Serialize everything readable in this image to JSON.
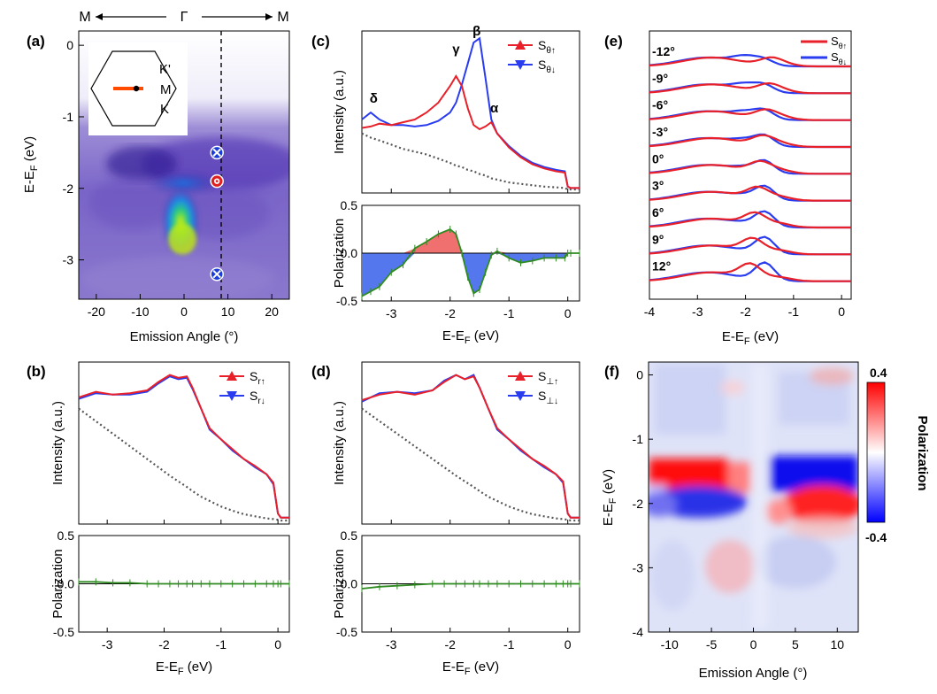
{
  "figure": {
    "top_labels": {
      "left": "M",
      "center": "Γ",
      "right": "M"
    },
    "panel_labels": {
      "a": "(a)",
      "b": "(b)",
      "c": "(c)",
      "d": "(d)",
      "e": "(e)",
      "f": "(f)"
    },
    "bz_labels": {
      "k_prime": "K'",
      "m": "M",
      "k": "K"
    }
  },
  "colors": {
    "red": "#e8202a",
    "blue": "#2a3cf0",
    "green": "#2e8b20",
    "gray": "#555555"
  },
  "chart_data": [
    {
      "id": "a",
      "type": "heatmap",
      "xlabel": "Emission Angle (°)",
      "ylabel": "E-E_F (eV)",
      "xlim": [
        -24,
        24
      ],
      "ylim": [
        -3.55,
        0.2
      ],
      "xticks": [
        -20,
        -10,
        0,
        10,
        20
      ],
      "yticks": [
        0,
        -1,
        -2,
        -3
      ],
      "cut_angle": 7.5,
      "markers": [
        {
          "angle": 7.5,
          "energy": -1.5,
          "kind": "spin-down"
        },
        {
          "angle": 7.5,
          "energy": -1.9,
          "kind": "spin-up"
        },
        {
          "angle": 7.5,
          "energy": -3.2,
          "kind": "spin-down"
        }
      ]
    },
    {
      "id": "b",
      "type": "line",
      "xlabel": "E-E_F (eV)",
      "ylabel_top": "Intensity (a.u.)",
      "ylabel_bottom": "Polarization",
      "xlim": [
        -3.5,
        0.2
      ],
      "xticks": [
        -3,
        -2,
        -1,
        0
      ],
      "pol_ylim": [
        -0.5,
        0.5
      ],
      "pol_yticks": [
        0.5,
        0.0,
        -0.5
      ],
      "legend": [
        "S_r↑",
        "S_r↓"
      ],
      "energy": [
        -3.5,
        -3.2,
        -2.9,
        -2.6,
        -2.3,
        -2.1,
        -1.9,
        -1.75,
        -1.6,
        -1.5,
        -1.35,
        -1.2,
        -1.0,
        -0.8,
        -0.6,
        -0.4,
        -0.2,
        -0.08,
        0.0,
        0.05,
        0.2
      ],
      "intensity_up": [
        0.88,
        0.92,
        0.9,
        0.91,
        0.93,
        0.99,
        1.04,
        1.02,
        1.03,
        0.95,
        0.8,
        0.66,
        0.58,
        0.51,
        0.44,
        0.39,
        0.33,
        0.27,
        0.05,
        0.02,
        0.02
      ],
      "intensity_down": [
        0.87,
        0.91,
        0.9,
        0.9,
        0.92,
        0.98,
        1.03,
        1.01,
        1.02,
        0.94,
        0.8,
        0.65,
        0.58,
        0.5,
        0.44,
        0.38,
        0.33,
        0.26,
        0.05,
        0.02,
        0.02
      ],
      "background": [
        0.8,
        0.71,
        0.62,
        0.53,
        0.44,
        0.38,
        0.32,
        0.28,
        0.24,
        0.21,
        0.17,
        0.14,
        0.1,
        0.07,
        0.045,
        0.03,
        0.015,
        0.01,
        0.005,
        0.0,
        0.0
      ],
      "polarization": [
        0.02,
        0.02,
        0.01,
        0.01,
        0.0,
        0.0,
        0.0,
        0.0,
        0.0,
        0.0,
        0.0,
        0.0,
        0.0,
        0.0,
        0.0,
        0.0,
        0.0,
        0.0,
        0.0,
        0.0,
        0.0
      ]
    },
    {
      "id": "c",
      "type": "line",
      "xlabel": "E-E_F (eV)",
      "ylabel_top": "Intensity (a.u.)",
      "ylabel_bottom": "Polarization",
      "xlim": [
        -3.5,
        0.2
      ],
      "xticks": [
        -3,
        -2,
        -1,
        0
      ],
      "pol_ylim": [
        -0.5,
        0.5
      ],
      "pol_yticks": [
        0.5,
        0.0,
        -0.5
      ],
      "legend": [
        "S_θ↑",
        "S_θ↓"
      ],
      "peak_labels": [
        {
          "text": "δ",
          "energy": -3.3,
          "intensity": 0.62
        },
        {
          "text": "γ",
          "energy": -1.9,
          "intensity": 0.97
        },
        {
          "text": "β",
          "energy": -1.55,
          "intensity": 1.1
        },
        {
          "text": "α",
          "energy": -1.25,
          "intensity": 0.55
        }
      ],
      "energy": [
        -3.5,
        -3.35,
        -3.2,
        -3.0,
        -2.8,
        -2.6,
        -2.4,
        -2.2,
        -2.0,
        -1.9,
        -1.8,
        -1.7,
        -1.6,
        -1.5,
        -1.4,
        -1.3,
        -1.2,
        -1.0,
        -0.8,
        -0.6,
        -0.4,
        -0.2,
        -0.05,
        0.0,
        0.05,
        0.2
      ],
      "intensity_up": [
        0.44,
        0.45,
        0.47,
        0.46,
        0.48,
        0.5,
        0.55,
        0.62,
        0.74,
        0.81,
        0.74,
        0.58,
        0.46,
        0.43,
        0.45,
        0.48,
        0.4,
        0.3,
        0.23,
        0.18,
        0.15,
        0.13,
        0.12,
        0.02,
        0.01,
        0.01
      ],
      "intensity_down": [
        0.5,
        0.55,
        0.5,
        0.46,
        0.46,
        0.45,
        0.46,
        0.49,
        0.55,
        0.62,
        0.75,
        0.9,
        1.05,
        1.08,
        0.8,
        0.5,
        0.4,
        0.31,
        0.24,
        0.19,
        0.16,
        0.14,
        0.13,
        0.02,
        0.01,
        0.01
      ],
      "background": [
        0.4,
        0.37,
        0.35,
        0.32,
        0.29,
        0.27,
        0.25,
        0.22,
        0.19,
        0.17,
        0.16,
        0.14,
        0.13,
        0.11,
        0.1,
        0.08,
        0.07,
        0.05,
        0.04,
        0.03,
        0.02,
        0.015,
        0.01,
        0.0,
        0.0,
        0.0
      ],
      "polarization": [
        -0.45,
        -0.4,
        -0.35,
        -0.2,
        -0.12,
        0.05,
        0.12,
        0.2,
        0.25,
        0.2,
        0.0,
        -0.25,
        -0.42,
        -0.38,
        -0.2,
        -0.02,
        0.02,
        -0.05,
        -0.1,
        -0.08,
        -0.05,
        -0.05,
        -0.05,
        0.0,
        0.0,
        0.0
      ]
    },
    {
      "id": "d",
      "type": "line",
      "xlabel": "E-E_F (eV)",
      "ylabel_top": "Intensity (a.u.)",
      "ylabel_bottom": "Polarization",
      "xlim": [
        -3.5,
        0.2
      ],
      "xticks": [
        -3,
        -2,
        -1,
        0
      ],
      "pol_ylim": [
        -0.5,
        0.5
      ],
      "pol_yticks": [
        0.5,
        0.0,
        -0.5
      ],
      "legend": [
        "S_⊥↑",
        "S_⊥↓"
      ],
      "energy": [
        -3.5,
        -3.2,
        -2.9,
        -2.6,
        -2.3,
        -2.1,
        -1.9,
        -1.75,
        -1.6,
        -1.5,
        -1.35,
        -1.2,
        -1.0,
        -0.8,
        -0.6,
        -0.4,
        -0.2,
        -0.08,
        0.0,
        0.05,
        0.2
      ],
      "intensity_up": [
        0.86,
        0.9,
        0.92,
        0.9,
        0.93,
        0.99,
        1.04,
        1.01,
        1.03,
        0.95,
        0.8,
        0.66,
        0.58,
        0.51,
        0.44,
        0.39,
        0.33,
        0.28,
        0.05,
        0.02,
        0.02
      ],
      "intensity_down": [
        0.85,
        0.91,
        0.92,
        0.91,
        0.93,
        1.0,
        1.04,
        1.01,
        1.04,
        0.95,
        0.8,
        0.65,
        0.58,
        0.5,
        0.44,
        0.38,
        0.33,
        0.27,
        0.05,
        0.02,
        0.02
      ],
      "background": [
        0.8,
        0.71,
        0.62,
        0.53,
        0.44,
        0.38,
        0.32,
        0.28,
        0.24,
        0.21,
        0.17,
        0.14,
        0.1,
        0.07,
        0.045,
        0.03,
        0.015,
        0.01,
        0.005,
        0.0,
        0.0
      ],
      "polarization": [
        -0.05,
        -0.03,
        -0.02,
        -0.01,
        0.0,
        0.0,
        0.0,
        0.0,
        0.0,
        0.0,
        0.0,
        0.0,
        0.0,
        0.0,
        0.0,
        0.0,
        0.0,
        0.0,
        0.0,
        0.0,
        0.0
      ]
    },
    {
      "id": "e",
      "type": "line",
      "xlabel": "E-E_F (eV)",
      "xlim": [
        -4,
        0.2
      ],
      "xticks": [
        -4,
        -3,
        -2,
        -1,
        0
      ],
      "legend": [
        "S_θ↑",
        "S_θ↓"
      ],
      "angles": [
        "-12°",
        "-9°",
        "-6°",
        "-3°",
        "0°",
        "3°",
        "6°",
        "9°",
        "12°"
      ]
    },
    {
      "id": "f",
      "type": "heatmap",
      "xlabel": "Emission Angle (°)",
      "ylabel": "E-E_F (eV)",
      "xlim": [
        -12.5,
        12.5
      ],
      "ylim": [
        -4,
        0.2
      ],
      "xticks": [
        -10,
        -5,
        0,
        5,
        10
      ],
      "yticks": [
        0,
        -1,
        -2,
        -3,
        -4
      ],
      "colorbar": {
        "label": "Polarization",
        "max": "0.4",
        "min": "-0.4"
      }
    }
  ]
}
